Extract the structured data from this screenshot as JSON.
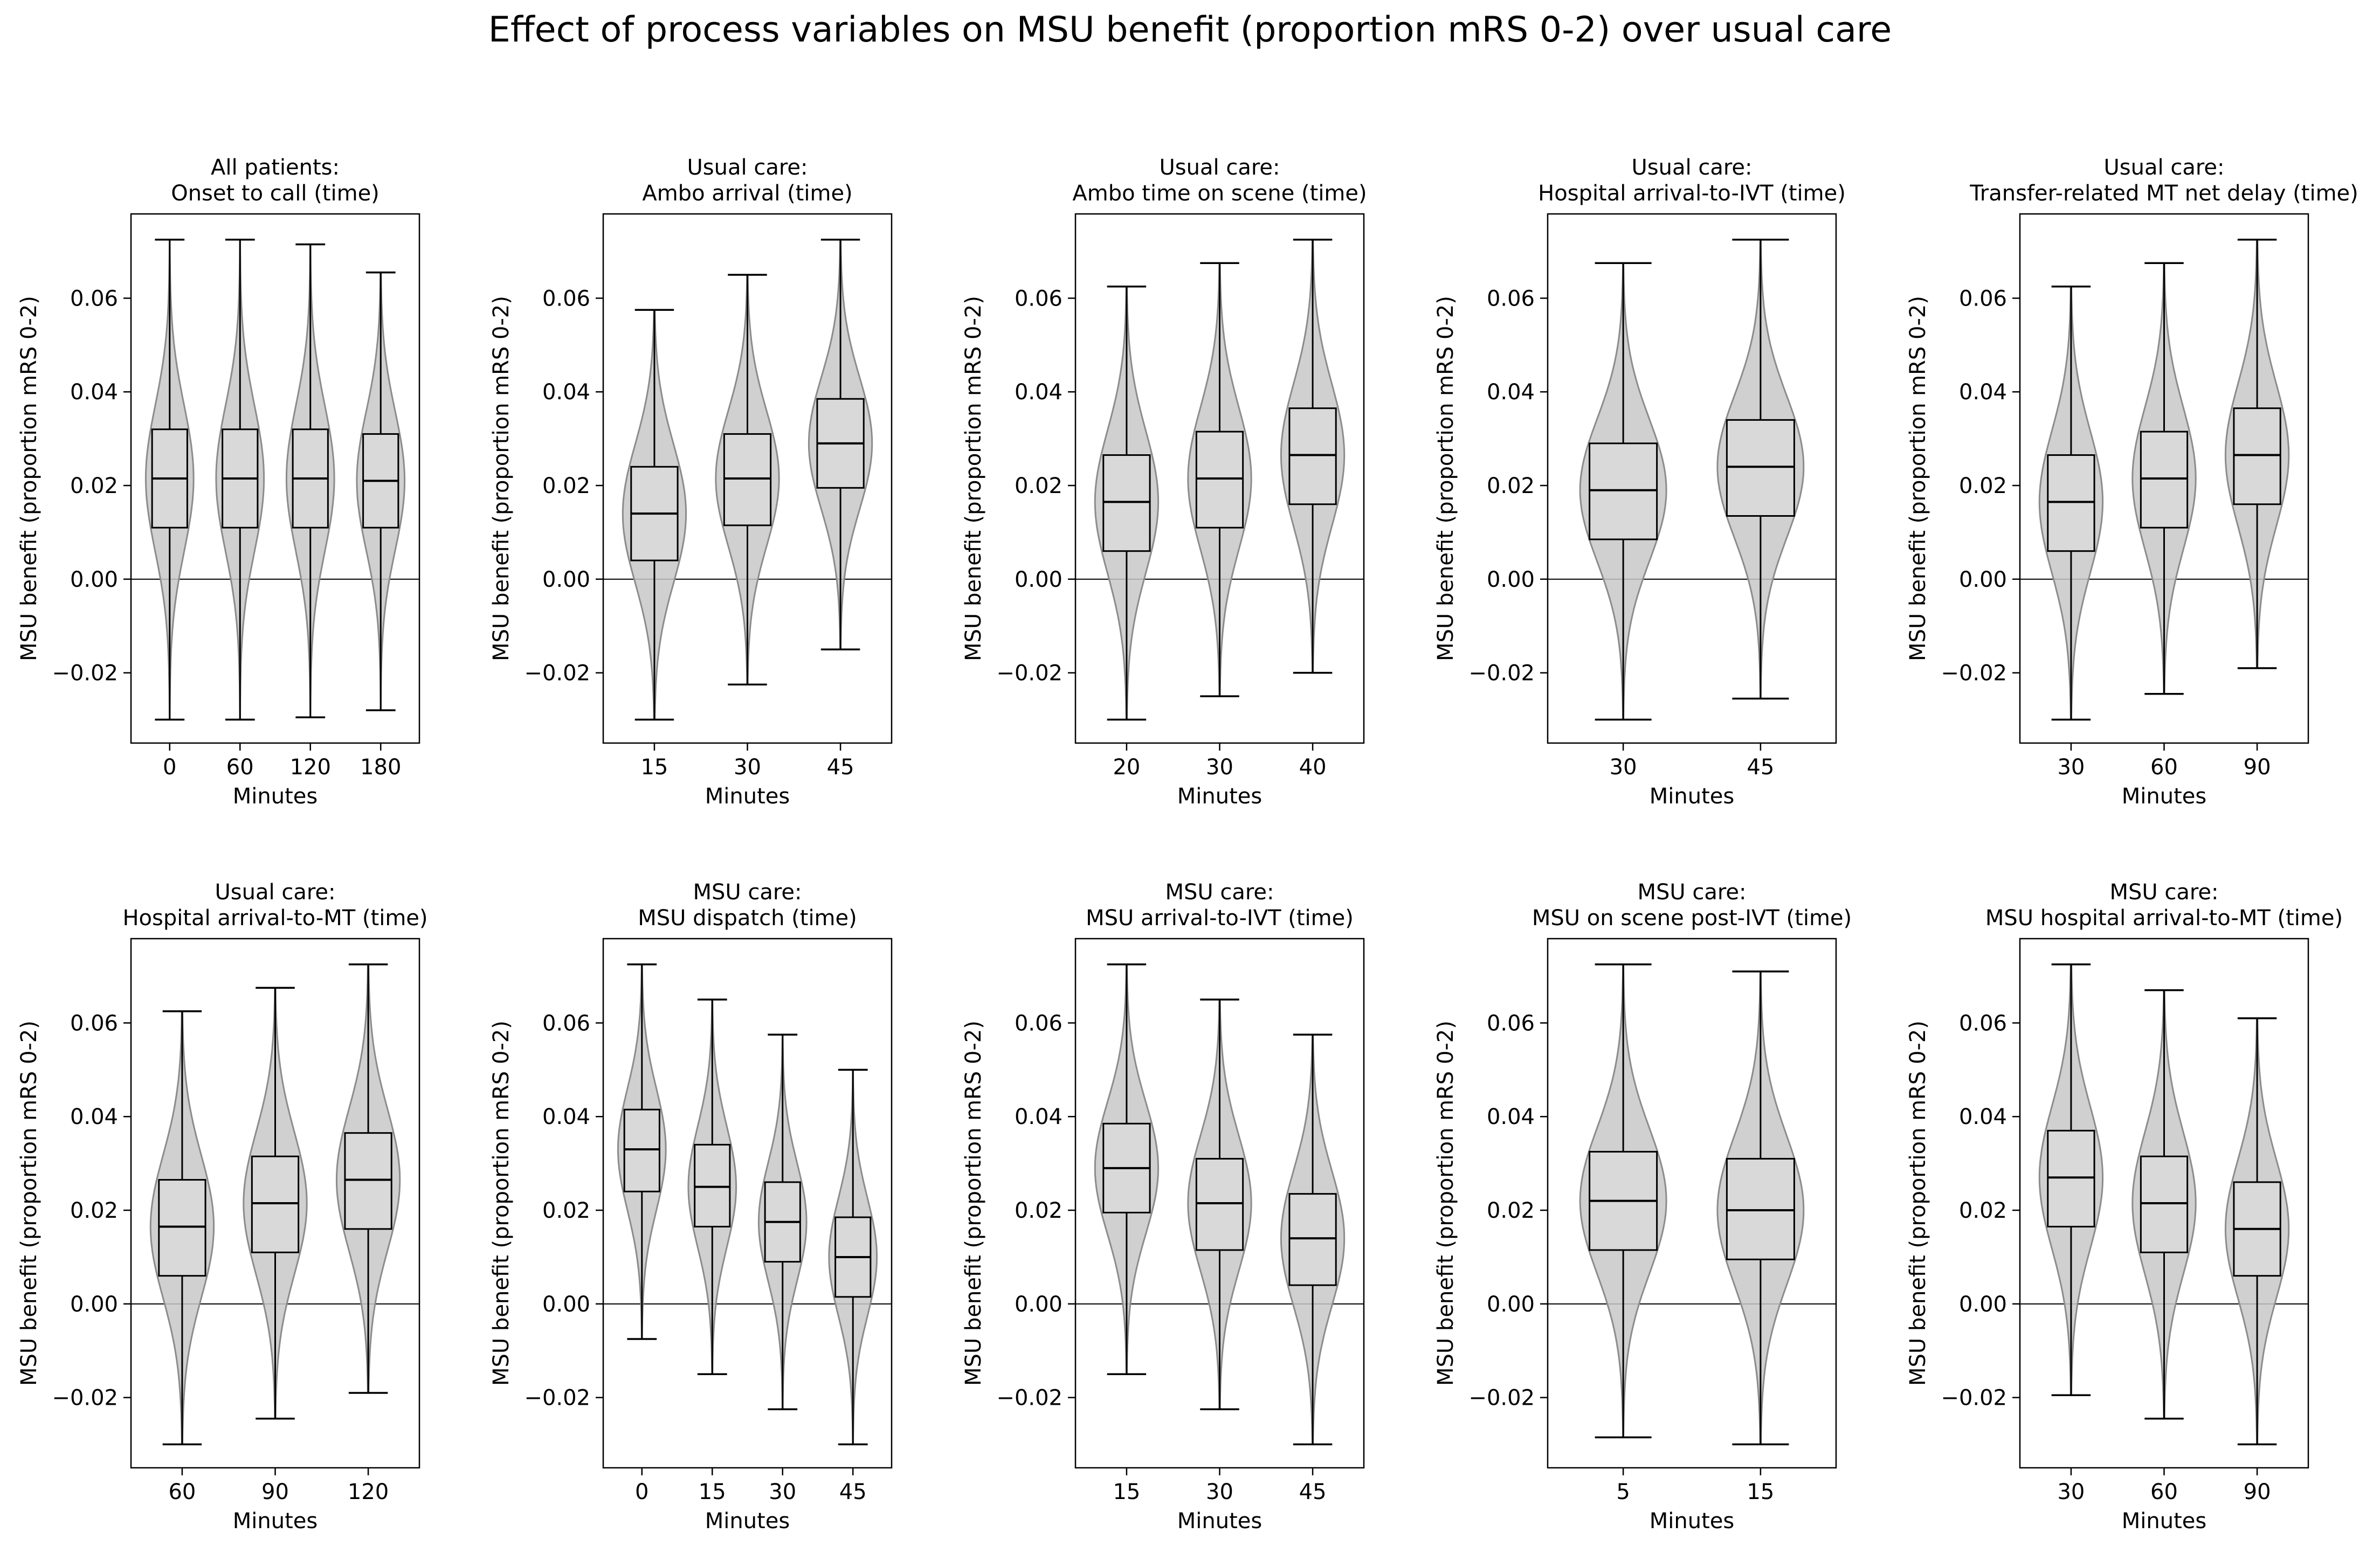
{
  "figure": {
    "title": "Effect of process variables on MSU benefit (proportion mRS 0-2) over usual care"
  },
  "colors": {
    "violin_fill": "#c8c8c8",
    "violin_edge": "#8c8c8c",
    "box_fill": "#d9d9d9",
    "line": "#000000"
  },
  "chart_data": [
    {
      "type": "violin-box",
      "title_line1": "All patients:",
      "title_line2": "Onset to call (time)",
      "xlabel": "Minutes",
      "ylabel": "MSU benefit (proportion mRS 0-2)",
      "ylim": [
        -0.035,
        0.078
      ],
      "yticks": [
        -0.02,
        0.0,
        0.02,
        0.04,
        0.06
      ],
      "ytick_labels": [
        "−0.02",
        "0.00",
        "0.02",
        "0.04",
        "0.06"
      ],
      "categories": [
        "0",
        "60",
        "120",
        "180"
      ],
      "boxes": [
        {
          "min": -0.03,
          "q1": 0.011,
          "median": 0.0215,
          "q3": 0.032,
          "max": 0.0725
        },
        {
          "min": -0.03,
          "q1": 0.011,
          "median": 0.0215,
          "q3": 0.032,
          "max": 0.0725
        },
        {
          "min": -0.0295,
          "q1": 0.011,
          "median": 0.0215,
          "q3": 0.032,
          "max": 0.0715
        },
        {
          "min": -0.028,
          "q1": 0.011,
          "median": 0.021,
          "q3": 0.031,
          "max": 0.0655
        }
      ]
    },
    {
      "type": "violin-box",
      "title_line1": "Usual care:",
      "title_line2": "Ambo arrival (time)",
      "xlabel": "Minutes",
      "ylabel": "MSU benefit (proportion mRS 0-2)",
      "ylim": [
        -0.035,
        0.078
      ],
      "yticks": [
        -0.02,
        0.0,
        0.02,
        0.04,
        0.06
      ],
      "ytick_labels": [
        "−0.02",
        "0.00",
        "0.02",
        "0.04",
        "0.06"
      ],
      "categories": [
        "15",
        "30",
        "45"
      ],
      "boxes": [
        {
          "min": -0.03,
          "q1": 0.004,
          "median": 0.014,
          "q3": 0.024,
          "max": 0.0575
        },
        {
          "min": -0.0225,
          "q1": 0.0115,
          "median": 0.0215,
          "q3": 0.031,
          "max": 0.065
        },
        {
          "min": -0.015,
          "q1": 0.0195,
          "median": 0.029,
          "q3": 0.0385,
          "max": 0.0725
        }
      ]
    },
    {
      "type": "violin-box",
      "title_line1": "Usual care:",
      "title_line2": "Ambo time on scene (time)",
      "xlabel": "Minutes",
      "ylabel": "MSU benefit (proportion mRS 0-2)",
      "ylim": [
        -0.035,
        0.078
      ],
      "yticks": [
        -0.02,
        0.0,
        0.02,
        0.04,
        0.06
      ],
      "ytick_labels": [
        "−0.02",
        "0.00",
        "0.02",
        "0.04",
        "0.06"
      ],
      "categories": [
        "20",
        "30",
        "40"
      ],
      "boxes": [
        {
          "min": -0.03,
          "q1": 0.006,
          "median": 0.0165,
          "q3": 0.0265,
          "max": 0.0625
        },
        {
          "min": -0.025,
          "q1": 0.011,
          "median": 0.0215,
          "q3": 0.0315,
          "max": 0.0675
        },
        {
          "min": -0.02,
          "q1": 0.016,
          "median": 0.0265,
          "q3": 0.0365,
          "max": 0.0725
        }
      ]
    },
    {
      "type": "violin-box",
      "title_line1": "Usual care:",
      "title_line2": "Hospital arrival-to-IVT (time)",
      "xlabel": "Minutes",
      "ylabel": "MSU benefit (proportion mRS 0-2)",
      "ylim": [
        -0.035,
        0.078
      ],
      "yticks": [
        -0.02,
        0.0,
        0.02,
        0.04,
        0.06
      ],
      "ytick_labels": [
        "−0.02",
        "0.00",
        "0.02",
        "0.04",
        "0.06"
      ],
      "categories": [
        "30",
        "45"
      ],
      "boxes": [
        {
          "min": -0.03,
          "q1": 0.0085,
          "median": 0.019,
          "q3": 0.029,
          "max": 0.0675
        },
        {
          "min": -0.0255,
          "q1": 0.0135,
          "median": 0.024,
          "q3": 0.034,
          "max": 0.0725
        }
      ]
    },
    {
      "type": "violin-box",
      "title_line1": "Usual care:",
      "title_line2": "Transfer-related MT net delay (time)",
      "xlabel": "Minutes",
      "ylabel": "MSU benefit (proportion mRS 0-2)",
      "ylim": [
        -0.035,
        0.078
      ],
      "yticks": [
        -0.02,
        0.0,
        0.02,
        0.04,
        0.06
      ],
      "ytick_labels": [
        "−0.02",
        "0.00",
        "0.02",
        "0.04",
        "0.06"
      ],
      "categories": [
        "30",
        "60",
        "90"
      ],
      "boxes": [
        {
          "min": -0.03,
          "q1": 0.006,
          "median": 0.0165,
          "q3": 0.0265,
          "max": 0.0625
        },
        {
          "min": -0.0245,
          "q1": 0.011,
          "median": 0.0215,
          "q3": 0.0315,
          "max": 0.0675
        },
        {
          "min": -0.019,
          "q1": 0.016,
          "median": 0.0265,
          "q3": 0.0365,
          "max": 0.0725
        }
      ]
    },
    {
      "type": "violin-box",
      "title_line1": "Usual care:",
      "title_line2": "Hospital arrival-to-MT (time)",
      "xlabel": "Minutes",
      "ylabel": "MSU benefit (proportion mRS 0-2)",
      "ylim": [
        -0.035,
        0.078
      ],
      "yticks": [
        -0.02,
        0.0,
        0.02,
        0.04,
        0.06
      ],
      "ytick_labels": [
        "−0.02",
        "0.00",
        "0.02",
        "0.04",
        "0.06"
      ],
      "categories": [
        "60",
        "90",
        "120"
      ],
      "boxes": [
        {
          "min": -0.03,
          "q1": 0.006,
          "median": 0.0165,
          "q3": 0.0265,
          "max": 0.0625
        },
        {
          "min": -0.0245,
          "q1": 0.011,
          "median": 0.0215,
          "q3": 0.0315,
          "max": 0.0675
        },
        {
          "min": -0.019,
          "q1": 0.016,
          "median": 0.0265,
          "q3": 0.0365,
          "max": 0.0725
        }
      ]
    },
    {
      "type": "violin-box",
      "title_line1": "MSU care:",
      "title_line2": "MSU dispatch (time)",
      "xlabel": "Minutes",
      "ylabel": "MSU benefit (proportion mRS 0-2)",
      "ylim": [
        -0.035,
        0.078
      ],
      "yticks": [
        -0.02,
        0.0,
        0.02,
        0.04,
        0.06
      ],
      "ytick_labels": [
        "−0.02",
        "0.00",
        "0.02",
        "0.04",
        "0.06"
      ],
      "categories": [
        "0",
        "15",
        "30",
        "45"
      ],
      "boxes": [
        {
          "min": -0.0075,
          "q1": 0.024,
          "median": 0.033,
          "q3": 0.0415,
          "max": 0.0725
        },
        {
          "min": -0.015,
          "q1": 0.0165,
          "median": 0.025,
          "q3": 0.034,
          "max": 0.065
        },
        {
          "min": -0.0225,
          "q1": 0.009,
          "median": 0.0175,
          "q3": 0.026,
          "max": 0.0575
        },
        {
          "min": -0.03,
          "q1": 0.0015,
          "median": 0.01,
          "q3": 0.0185,
          "max": 0.05
        }
      ]
    },
    {
      "type": "violin-box",
      "title_line1": "MSU care:",
      "title_line2": "MSU arrival-to-IVT (time)",
      "xlabel": "Minutes",
      "ylabel": "MSU benefit (proportion mRS 0-2)",
      "ylim": [
        -0.035,
        0.078
      ],
      "yticks": [
        -0.02,
        0.0,
        0.02,
        0.04,
        0.06
      ],
      "ytick_labels": [
        "−0.02",
        "0.00",
        "0.02",
        "0.04",
        "0.06"
      ],
      "categories": [
        "15",
        "30",
        "45"
      ],
      "boxes": [
        {
          "min": -0.015,
          "q1": 0.0195,
          "median": 0.029,
          "q3": 0.0385,
          "max": 0.0725
        },
        {
          "min": -0.0225,
          "q1": 0.0115,
          "median": 0.0215,
          "q3": 0.031,
          "max": 0.065
        },
        {
          "min": -0.03,
          "q1": 0.004,
          "median": 0.014,
          "q3": 0.0235,
          "max": 0.0575
        }
      ]
    },
    {
      "type": "violin-box",
      "title_line1": "MSU care:",
      "title_line2": "MSU on scene post-IVT (time)",
      "xlabel": "Minutes",
      "ylabel": "MSU benefit (proportion mRS 0-2)",
      "ylim": [
        -0.035,
        0.078
      ],
      "yticks": [
        -0.02,
        0.0,
        0.02,
        0.04,
        0.06
      ],
      "ytick_labels": [
        "−0.02",
        "0.00",
        "0.02",
        "0.04",
        "0.06"
      ],
      "categories": [
        "5",
        "15"
      ],
      "boxes": [
        {
          "min": -0.0285,
          "q1": 0.0115,
          "median": 0.022,
          "q3": 0.0325,
          "max": 0.0725
        },
        {
          "min": -0.03,
          "q1": 0.0095,
          "median": 0.02,
          "q3": 0.031,
          "max": 0.071
        }
      ]
    },
    {
      "type": "violin-box",
      "title_line1": "MSU care:",
      "title_line2": "MSU hospital arrival-to-MT (time)",
      "xlabel": "Minutes",
      "ylabel": "MSU benefit (proportion mRS 0-2)",
      "ylim": [
        -0.035,
        0.078
      ],
      "yticks": [
        -0.02,
        0.0,
        0.02,
        0.04,
        0.06
      ],
      "ytick_labels": [
        "−0.02",
        "0.00",
        "0.02",
        "0.04",
        "0.06"
      ],
      "categories": [
        "30",
        "60",
        "90"
      ],
      "boxes": [
        {
          "min": -0.0195,
          "q1": 0.0165,
          "median": 0.027,
          "q3": 0.037,
          "max": 0.0725
        },
        {
          "min": -0.0245,
          "q1": 0.011,
          "median": 0.0215,
          "q3": 0.0315,
          "max": 0.067
        },
        {
          "min": -0.03,
          "q1": 0.006,
          "median": 0.016,
          "q3": 0.026,
          "max": 0.061
        }
      ]
    }
  ]
}
